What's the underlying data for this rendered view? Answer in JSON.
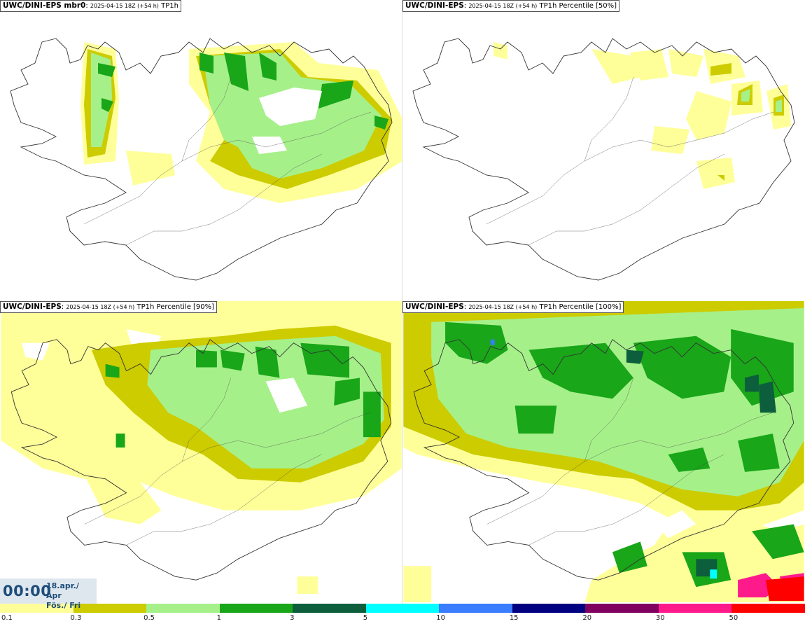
{
  "panels": [
    {
      "id": "p1",
      "model": "UWC/DINI-EPS mbr0",
      "run": "2025-04-15 18Z (+54 h)",
      "field": "TP1h"
    },
    {
      "id": "p2",
      "model": "UWC/DINI-EPS",
      "run": "2025-04-15 18Z (+54 h)",
      "field": "TP1h Percentile [50%]"
    },
    {
      "id": "p3",
      "model": "UWC/DINI-EPS",
      "run": "2025-04-15 18Z (+54 h)",
      "field": "TP1h Percentile [90%]"
    },
    {
      "id": "p4",
      "model": "UWC/DINI-EPS",
      "run": "2025-04-15 18Z (+54 h)",
      "field": "TP1h Percentile [100%]"
    }
  ],
  "valid_time": {
    "time": "00:00",
    "date_line1": "18.apr./ Apr",
    "date_line2": "Fös./ Fri"
  },
  "legend": {
    "ticks": [
      "0.1",
      "0.3",
      "0.5",
      "1",
      "3",
      "5",
      "10",
      "15",
      "20",
      "30",
      "50"
    ],
    "colors": [
      "#ffff99",
      "#cccc00",
      "#a6f08a",
      "#19a619",
      "#0d5e3c",
      "#00ffff",
      "#3a7dff",
      "#000080",
      "#800060",
      "#ff1a8c",
      "#ff0000"
    ]
  },
  "colors": {
    "c1": "#ffff99",
    "c2": "#cccc00",
    "c3": "#a6f08a",
    "c4": "#19a619",
    "c5": "#0d5e3c",
    "c6": "#00ffff",
    "c7": "#3a7dff",
    "c8": "#ff1a8c"
  }
}
